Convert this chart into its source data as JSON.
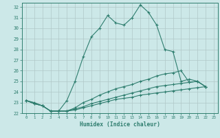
{
  "xlabel": "Humidex (Indice chaleur)",
  "bg_color": "#cce8e8",
  "grid_color": "#b0c8c8",
  "line_color": "#2e7d6e",
  "xlim": [
    -0.5,
    23.5
  ],
  "ylim": [
    22,
    32.4
  ],
  "xticks": [
    0,
    1,
    2,
    3,
    4,
    5,
    6,
    7,
    8,
    9,
    10,
    11,
    12,
    13,
    14,
    15,
    16,
    17,
    18,
    19,
    20,
    21,
    22,
    23
  ],
  "yticks": [
    22,
    23,
    24,
    25,
    26,
    27,
    28,
    29,
    30,
    31,
    32
  ],
  "series": [
    [
      23.2,
      23.0,
      22.7,
      22.2,
      22.2,
      23.2,
      25.0,
      27.3,
      29.2,
      30.0,
      31.2,
      30.5,
      30.3,
      31.0,
      32.2,
      31.5,
      30.3,
      28.0,
      27.8,
      25.0,
      25.2,
      25.0,
      24.5
    ],
    [
      23.2,
      22.9,
      22.7,
      22.2,
      22.2,
      22.2,
      22.5,
      23.0,
      23.3,
      23.7,
      24.0,
      24.3,
      24.5,
      24.7,
      25.0,
      25.2,
      25.5,
      25.7,
      25.8,
      26.0,
      24.9,
      25.0,
      24.5
    ],
    [
      23.2,
      22.9,
      22.7,
      22.2,
      22.2,
      22.2,
      22.4,
      22.6,
      22.9,
      23.1,
      23.3,
      23.5,
      23.7,
      23.9,
      24.1,
      24.3,
      24.5,
      24.6,
      24.7,
      24.8,
      24.9,
      25.0,
      24.5
    ],
    [
      23.2,
      22.9,
      22.7,
      22.2,
      22.2,
      22.2,
      22.3,
      22.5,
      22.7,
      22.9,
      23.1,
      23.3,
      23.4,
      23.5,
      23.7,
      23.8,
      23.9,
      24.0,
      24.1,
      24.2,
      24.3,
      24.4,
      24.5
    ]
  ]
}
